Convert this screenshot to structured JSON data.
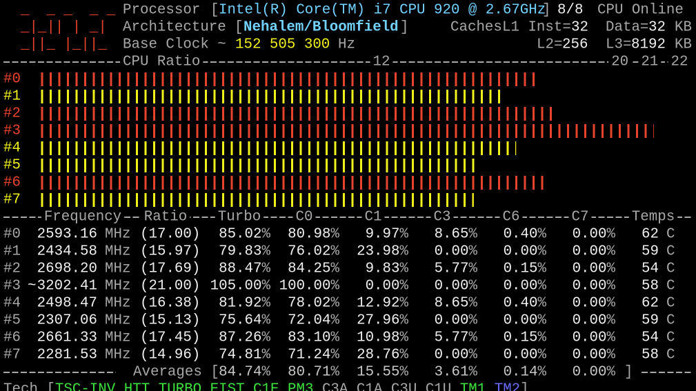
{
  "logo": [
    "_  _ _  _ _",
    "_|_|| | _|",
    "_||_ |_||_"
  ],
  "header": {
    "processor_label": "Processor",
    "open": "[",
    "close": "]",
    "processor": "Intel(R) Core(TM) i7 CPU 920 @ 2.67GHz",
    "online_count": "8/8",
    "online_label": "CPU Online",
    "architecture_label": "Architecture",
    "architecture": "Nehalem/Bloomfield",
    "caches_label": "Caches",
    "l1_inst_label": "L1 Inst=",
    "l1_inst": "32",
    "l1_data_label": "Data=",
    "l1_data": "32",
    "kb_unit": "KB",
    "base_clock_label": "Base Clock ~",
    "base_clock": "152 505 300",
    "hz_unit": "Hz",
    "l2_label": "L2=",
    "l2": "256",
    "l3_label": "L3=",
    "l3": "8192"
  },
  "cpu_ratio": {
    "title": "CPU Ratio",
    "ticks": [
      12,
      20,
      21,
      22
    ],
    "colors": [
      "#e8432c",
      "#f2f21c",
      "#e8432c",
      "#e8432c",
      "#f2f21c",
      "#f2f21c",
      "#e8432c",
      "#f2f21c"
    ]
  },
  "table": {
    "headers": [
      "Frequency",
      "Ratio",
      "Turbo",
      "C0",
      "C1",
      "C3",
      "C6",
      "C7",
      "Temps"
    ],
    "freq_unit": "MHz",
    "percent": "%",
    "temp_unit": "C",
    "rows": [
      {
        "cpu": "#0",
        "freq": "2593.16",
        "ratio": 17,
        "ratio_label": "(17.00)",
        "turbo": "85.02",
        "c0": "80.98",
        "c1": "9.97",
        "c3": "8.65",
        "c6": "0.40",
        "c7": "0.00",
        "temp": "62"
      },
      {
        "cpu": "#1",
        "freq": "2434.58",
        "ratio": 15.97,
        "ratio_label": "(15.97)",
        "turbo": "79.83",
        "c0": "76.02",
        "c1": "23.98",
        "c3": "0.00",
        "c6": "0.00",
        "c7": "0.00",
        "temp": "59"
      },
      {
        "cpu": "#2",
        "freq": "2698.20",
        "ratio": 17.69,
        "ratio_label": "(17.69)",
        "turbo": "88.47",
        "c0": "84.25",
        "c1": "9.83",
        "c3": "5.77",
        "c6": "0.15",
        "c7": "0.00",
        "temp": "54"
      },
      {
        "cpu": "#3",
        "marker": "~",
        "freq": "3202.41",
        "ratio": 21,
        "ratio_label": "(21.00)",
        "turbo": "105.00",
        "c0": "100.00",
        "c1": "0.00",
        "c3": "0.00",
        "c6": "0.00",
        "c7": "0.00",
        "temp": "58"
      },
      {
        "cpu": "#4",
        "freq": "2498.47",
        "ratio": 16.38,
        "ratio_label": "(16.38)",
        "turbo": "81.92",
        "c0": "78.02",
        "c1": "12.92",
        "c3": "8.65",
        "c6": "0.40",
        "c7": "0.00",
        "temp": "62"
      },
      {
        "cpu": "#5",
        "freq": "2307.06",
        "ratio": 15.13,
        "ratio_label": "(15.13)",
        "turbo": "75.64",
        "c0": "72.04",
        "c1": "27.96",
        "c3": "0.00",
        "c6": "0.00",
        "c7": "0.00",
        "temp": "59"
      },
      {
        "cpu": "#6",
        "freq": "2661.33",
        "ratio": 17.45,
        "ratio_label": "(17.45)",
        "turbo": "87.26",
        "c0": "83.10",
        "c1": "10.98",
        "c3": "5.77",
        "c6": "0.15",
        "c7": "0.00",
        "temp": "54"
      },
      {
        "cpu": "#7",
        "freq": "2281.53",
        "ratio": 14.96,
        "ratio_label": "(14.96)",
        "turbo": "74.81",
        "c0": "71.24",
        "c1": "28.76",
        "c3": "0.00",
        "c6": "0.00",
        "c7": "0.00",
        "temp": "58"
      }
    ]
  },
  "averages": {
    "label": "Averages [",
    "turbo": "84.74",
    "c0": "80.71",
    "c1": "15.55",
    "c3": "3.61",
    "c6": "0.14",
    "c7": "0.00",
    "close": "]"
  },
  "tech": {
    "label": "Tech [",
    "close": "]",
    "items": [
      {
        "name": "TSC-INV",
        "color": "#3ee23e"
      },
      {
        "name": "HTT",
        "color": "#3ee23e"
      },
      {
        "name": "TURBO",
        "color": "#3ee23e"
      },
      {
        "name": "EIST",
        "color": "#3ee23e"
      },
      {
        "name": "C1E",
        "color": "#3ee23e"
      },
      {
        "name": "PM3",
        "color": "#3ee23e"
      },
      {
        "name": "C3A",
        "color": "#a8a8a8"
      },
      {
        "name": "C1A",
        "color": "#a8a8a8"
      },
      {
        "name": "C3U",
        "color": "#a8a8a8"
      },
      {
        "name": "C1U",
        "color": "#a8a8a8"
      },
      {
        "name": "TM1",
        "color": "#3ee23e"
      },
      {
        "name": "TM2",
        "color": "#6a6aff"
      }
    ]
  }
}
